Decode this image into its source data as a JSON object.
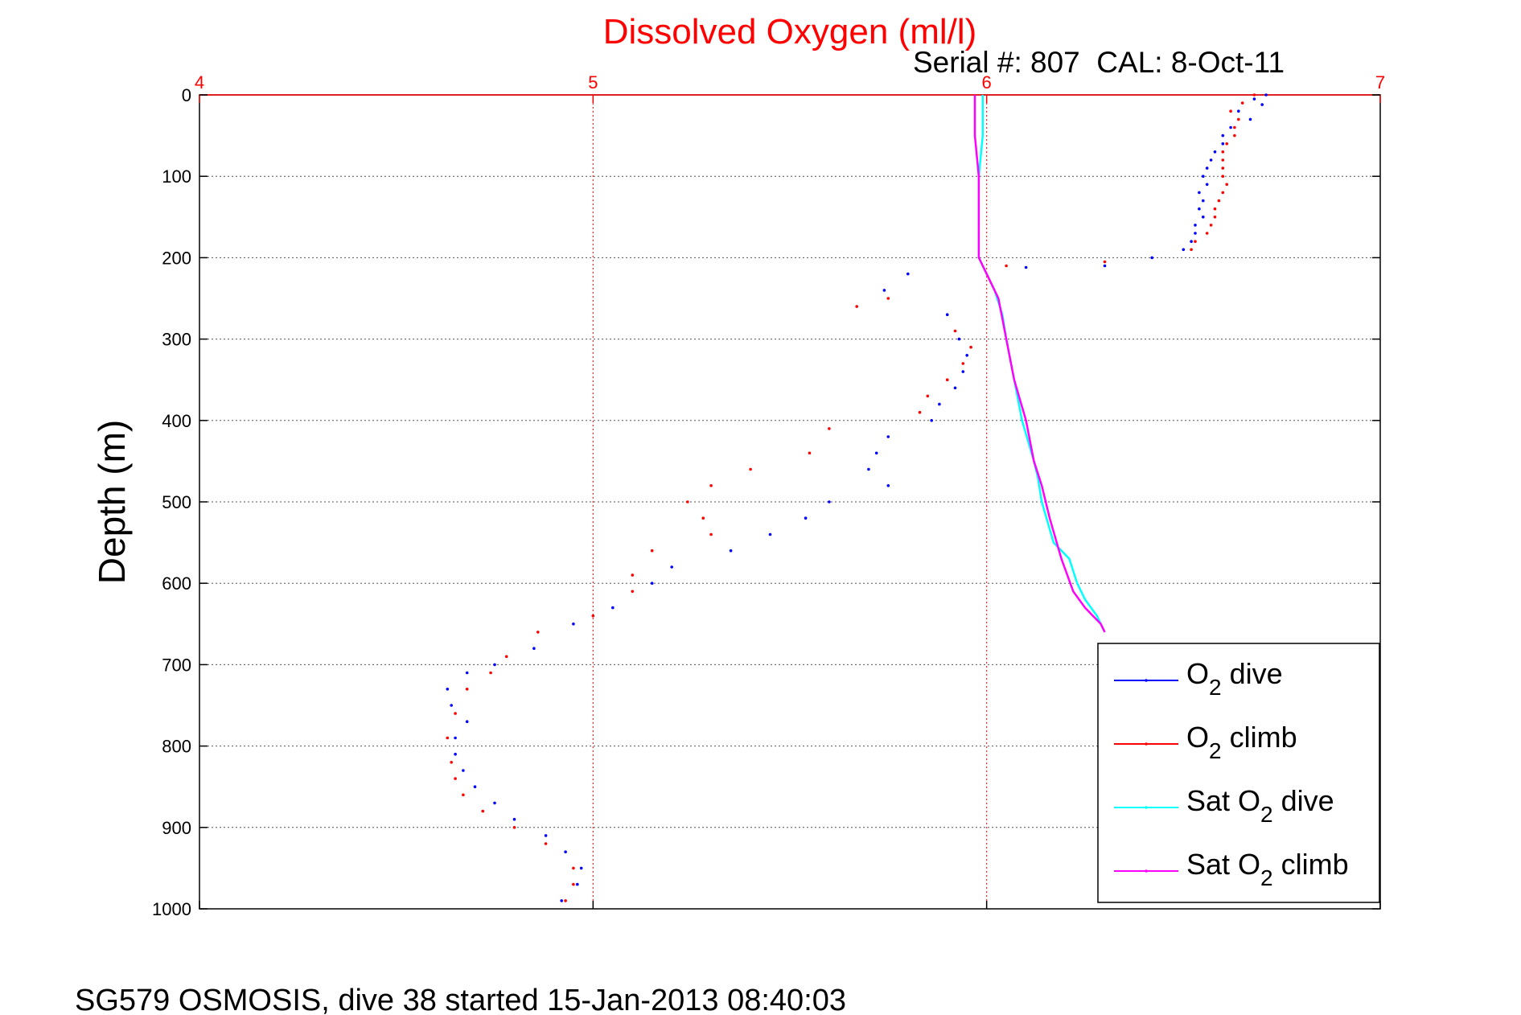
{
  "chart_data": {
    "type": "scatter",
    "title": "Dissolved Oxygen (ml/l)",
    "subtitle": "Serial #: 807  CAL: 8-Oct-11",
    "ylabel": "Depth (m)",
    "footer": "SG579 OSMOSIS, dive 38 started 15-Jan-2013 08:40:03",
    "xlim": [
      4,
      7
    ],
    "ylim": [
      0,
      1000
    ],
    "y_reversed": true,
    "x_axis_position": "top",
    "x_ticks": [
      4,
      5,
      6,
      7
    ],
    "y_ticks": [
      0,
      100,
      200,
      300,
      400,
      500,
      600,
      700,
      800,
      900,
      1000
    ],
    "x_tick_labels": [
      "4",
      "5",
      "6",
      "7"
    ],
    "y_tick_labels": [
      "0",
      "100",
      "200",
      "300",
      "400",
      "500",
      "600",
      "700",
      "800",
      "900",
      "1000"
    ],
    "grid": true,
    "legend_position": "bottom-right",
    "colors": {
      "title": "#ff0000",
      "x_ticks": "#ff0000",
      "vgrid": "#ff0000",
      "hgrid": "#555555"
    },
    "legend": [
      {
        "pre": "O",
        "sub": "2",
        "post": " dive"
      },
      {
        "pre": "O",
        "sub": "2",
        "post": " climb"
      },
      {
        "pre": "Sat O",
        "sub": "2",
        "post": " dive"
      },
      {
        "pre": "Sat O",
        "sub": "2",
        "post": " climb"
      }
    ],
    "series": [
      {
        "name": "O2 dive",
        "style": "dots",
        "color": "#0000ff",
        "points": [
          [
            6.71,
            0
          ],
          [
            6.68,
            5
          ],
          [
            6.7,
            12
          ],
          [
            6.64,
            20
          ],
          [
            6.67,
            30
          ],
          [
            6.62,
            40
          ],
          [
            6.6,
            50
          ],
          [
            6.6,
            60
          ],
          [
            6.58,
            70
          ],
          [
            6.57,
            80
          ],
          [
            6.56,
            90
          ],
          [
            6.55,
            100
          ],
          [
            6.56,
            110
          ],
          [
            6.54,
            120
          ],
          [
            6.55,
            130
          ],
          [
            6.54,
            140
          ],
          [
            6.55,
            150
          ],
          [
            6.53,
            160
          ],
          [
            6.53,
            170
          ],
          [
            6.52,
            180
          ],
          [
            6.5,
            190
          ],
          [
            6.42,
            200
          ],
          [
            6.3,
            210
          ],
          [
            6.1,
            212
          ],
          [
            5.8,
            220
          ],
          [
            5.74,
            240
          ],
          [
            5.9,
            270
          ],
          [
            5.93,
            300
          ],
          [
            5.95,
            320
          ],
          [
            5.94,
            340
          ],
          [
            5.92,
            360
          ],
          [
            5.88,
            380
          ],
          [
            5.86,
            400
          ],
          [
            5.75,
            420
          ],
          [
            5.72,
            440
          ],
          [
            5.7,
            460
          ],
          [
            5.75,
            480
          ],
          [
            5.6,
            500
          ],
          [
            5.54,
            520
          ],
          [
            5.45,
            540
          ],
          [
            5.35,
            560
          ],
          [
            5.2,
            580
          ],
          [
            5.15,
            600
          ],
          [
            5.05,
            630
          ],
          [
            4.95,
            650
          ],
          [
            4.85,
            680
          ],
          [
            4.75,
            700
          ],
          [
            4.68,
            710
          ],
          [
            4.63,
            730
          ],
          [
            4.64,
            750
          ],
          [
            4.68,
            770
          ],
          [
            4.65,
            790
          ],
          [
            4.65,
            810
          ],
          [
            4.67,
            830
          ],
          [
            4.7,
            850
          ],
          [
            4.75,
            870
          ],
          [
            4.8,
            890
          ],
          [
            4.88,
            910
          ],
          [
            4.93,
            930
          ],
          [
            4.97,
            950
          ],
          [
            4.96,
            970
          ],
          [
            4.92,
            990
          ]
        ]
      },
      {
        "name": "O2 climb",
        "style": "dots",
        "color": "#ff0000",
        "points": [
          [
            6.68,
            0
          ],
          [
            6.65,
            10
          ],
          [
            6.62,
            20
          ],
          [
            6.64,
            30
          ],
          [
            6.63,
            40
          ],
          [
            6.63,
            50
          ],
          [
            6.61,
            60
          ],
          [
            6.6,
            70
          ],
          [
            6.6,
            80
          ],
          [
            6.6,
            90
          ],
          [
            6.6,
            100
          ],
          [
            6.61,
            110
          ],
          [
            6.6,
            120
          ],
          [
            6.59,
            130
          ],
          [
            6.58,
            140
          ],
          [
            6.58,
            150
          ],
          [
            6.57,
            160
          ],
          [
            6.56,
            170
          ],
          [
            6.53,
            180
          ],
          [
            6.52,
            190
          ],
          [
            6.3,
            205
          ],
          [
            6.05,
            210
          ],
          [
            5.75,
            250
          ],
          [
            5.67,
            260
          ],
          [
            5.92,
            290
          ],
          [
            5.96,
            310
          ],
          [
            5.94,
            330
          ],
          [
            5.9,
            350
          ],
          [
            5.85,
            370
          ],
          [
            5.83,
            390
          ],
          [
            5.6,
            410
          ],
          [
            5.55,
            440
          ],
          [
            5.4,
            460
          ],
          [
            5.3,
            480
          ],
          [
            5.24,
            500
          ],
          [
            5.28,
            520
          ],
          [
            5.3,
            540
          ],
          [
            5.15,
            560
          ],
          [
            5.1,
            590
          ],
          [
            5.1,
            610
          ],
          [
            5.0,
            640
          ],
          [
            4.86,
            660
          ],
          [
            4.78,
            690
          ],
          [
            4.74,
            710
          ],
          [
            4.68,
            730
          ],
          [
            4.65,
            760
          ],
          [
            4.63,
            790
          ],
          [
            4.64,
            820
          ],
          [
            4.65,
            840
          ],
          [
            4.67,
            860
          ],
          [
            4.72,
            880
          ],
          [
            4.8,
            900
          ],
          [
            4.88,
            920
          ],
          [
            4.95,
            950
          ],
          [
            4.95,
            970
          ],
          [
            4.93,
            990
          ]
        ]
      },
      {
        "name": "Sat O2 dive",
        "style": "line",
        "color": "#00ffff",
        "points": [
          [
            5.99,
            0
          ],
          [
            5.99,
            50
          ],
          [
            5.98,
            100
          ],
          [
            5.98,
            150
          ],
          [
            5.98,
            200
          ],
          [
            6.0,
            220
          ],
          [
            6.02,
            240
          ],
          [
            6.04,
            270
          ],
          [
            6.05,
            300
          ],
          [
            6.07,
            350
          ],
          [
            6.09,
            400
          ],
          [
            6.12,
            450
          ],
          [
            6.13,
            470
          ],
          [
            6.14,
            500
          ],
          [
            6.17,
            550
          ],
          [
            6.21,
            570
          ],
          [
            6.23,
            600
          ],
          [
            6.25,
            620
          ],
          [
            6.28,
            640
          ],
          [
            6.3,
            660
          ]
        ]
      },
      {
        "name": "Sat O2 climb",
        "style": "line",
        "color": "#ff00ff",
        "points": [
          [
            5.97,
            0
          ],
          [
            5.97,
            50
          ],
          [
            5.98,
            100
          ],
          [
            5.98,
            150
          ],
          [
            5.98,
            200
          ],
          [
            6.0,
            220
          ],
          [
            6.03,
            250
          ],
          [
            6.05,
            300
          ],
          [
            6.07,
            350
          ],
          [
            6.1,
            400
          ],
          [
            6.12,
            450
          ],
          [
            6.14,
            480
          ],
          [
            6.16,
            520
          ],
          [
            6.19,
            570
          ],
          [
            6.22,
            610
          ],
          [
            6.25,
            630
          ],
          [
            6.29,
            650
          ],
          [
            6.3,
            660
          ]
        ]
      }
    ]
  }
}
